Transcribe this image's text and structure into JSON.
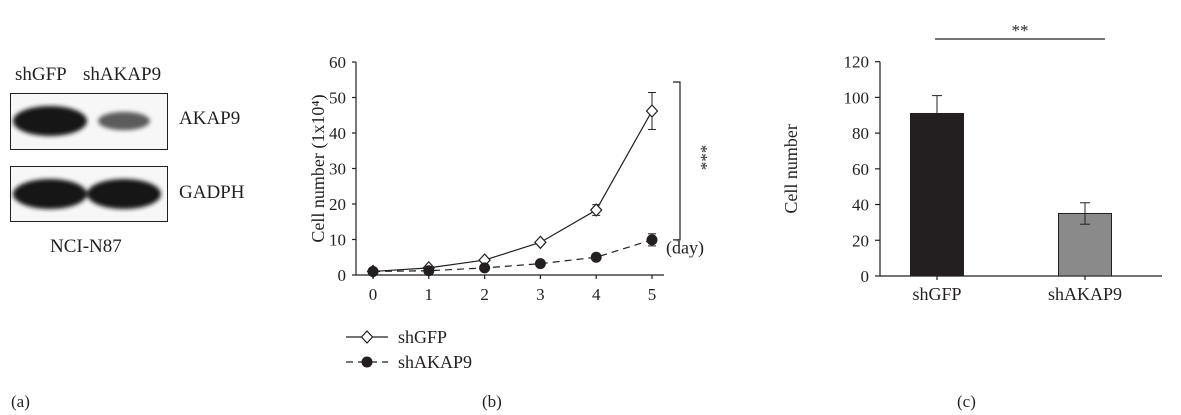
{
  "panel_a": {
    "lane_labels": [
      "shGFP",
      "shAKAP9"
    ],
    "band_labels": [
      "AKAP9",
      "GADPH"
    ],
    "cell_line": "NCI-N87",
    "band_intensity": {
      "AKAP9": [
        1.0,
        0.35
      ],
      "GADPH": [
        1.0,
        1.0
      ]
    }
  },
  "panel_labels": [
    "(a)",
    "(b)",
    "(c)"
  ],
  "chart_data": [
    {
      "type": "line",
      "title": "",
      "xlabel": "",
      "ylabel": "Cell number (1x10⁴)",
      "x_unit_label": "(day)",
      "x": [
        0,
        1,
        2,
        3,
        4,
        5
      ],
      "xlim": [
        0,
        5
      ],
      "ylim": [
        0,
        60
      ],
      "yticks": [
        0,
        10,
        20,
        30,
        40,
        50,
        60
      ],
      "grid": false,
      "legend_position": "bottom-left",
      "series": [
        {
          "name": "shGFP",
          "marker": "open-diamond",
          "line_style": "solid",
          "values": [
            1,
            2,
            4.2,
            9.2,
            18.3,
            46.2
          ],
          "errors": [
            0.3,
            0.4,
            0.5,
            0.6,
            1.5,
            5.2
          ]
        },
        {
          "name": "shAKAP9",
          "marker": "filled-circle",
          "line_style": "dashed",
          "values": [
            1,
            1.2,
            2,
            3.2,
            5,
            9.9
          ],
          "errors": [
            0.3,
            0.3,
            0.3,
            0.4,
            0.6,
            1.7
          ]
        }
      ],
      "significance": {
        "label": "***",
        "between": [
          "shGFP",
          "shAKAP9"
        ],
        "at_x": 5
      }
    },
    {
      "type": "bar",
      "title": "",
      "xlabel": "",
      "ylabel": "Cell number",
      "categories": [
        "shGFP",
        "shAKAP9"
      ],
      "values": [
        91,
        35
      ],
      "errors": [
        10,
        6
      ],
      "bar_colors": [
        "#231f20",
        "#8a8a8a"
      ],
      "ylim": [
        0,
        120
      ],
      "yticks": [
        0,
        20,
        40,
        60,
        80,
        100,
        120
      ],
      "grid": false,
      "significance": {
        "label": "**",
        "between": [
          "shGFP",
          "shAKAP9"
        ]
      }
    }
  ]
}
